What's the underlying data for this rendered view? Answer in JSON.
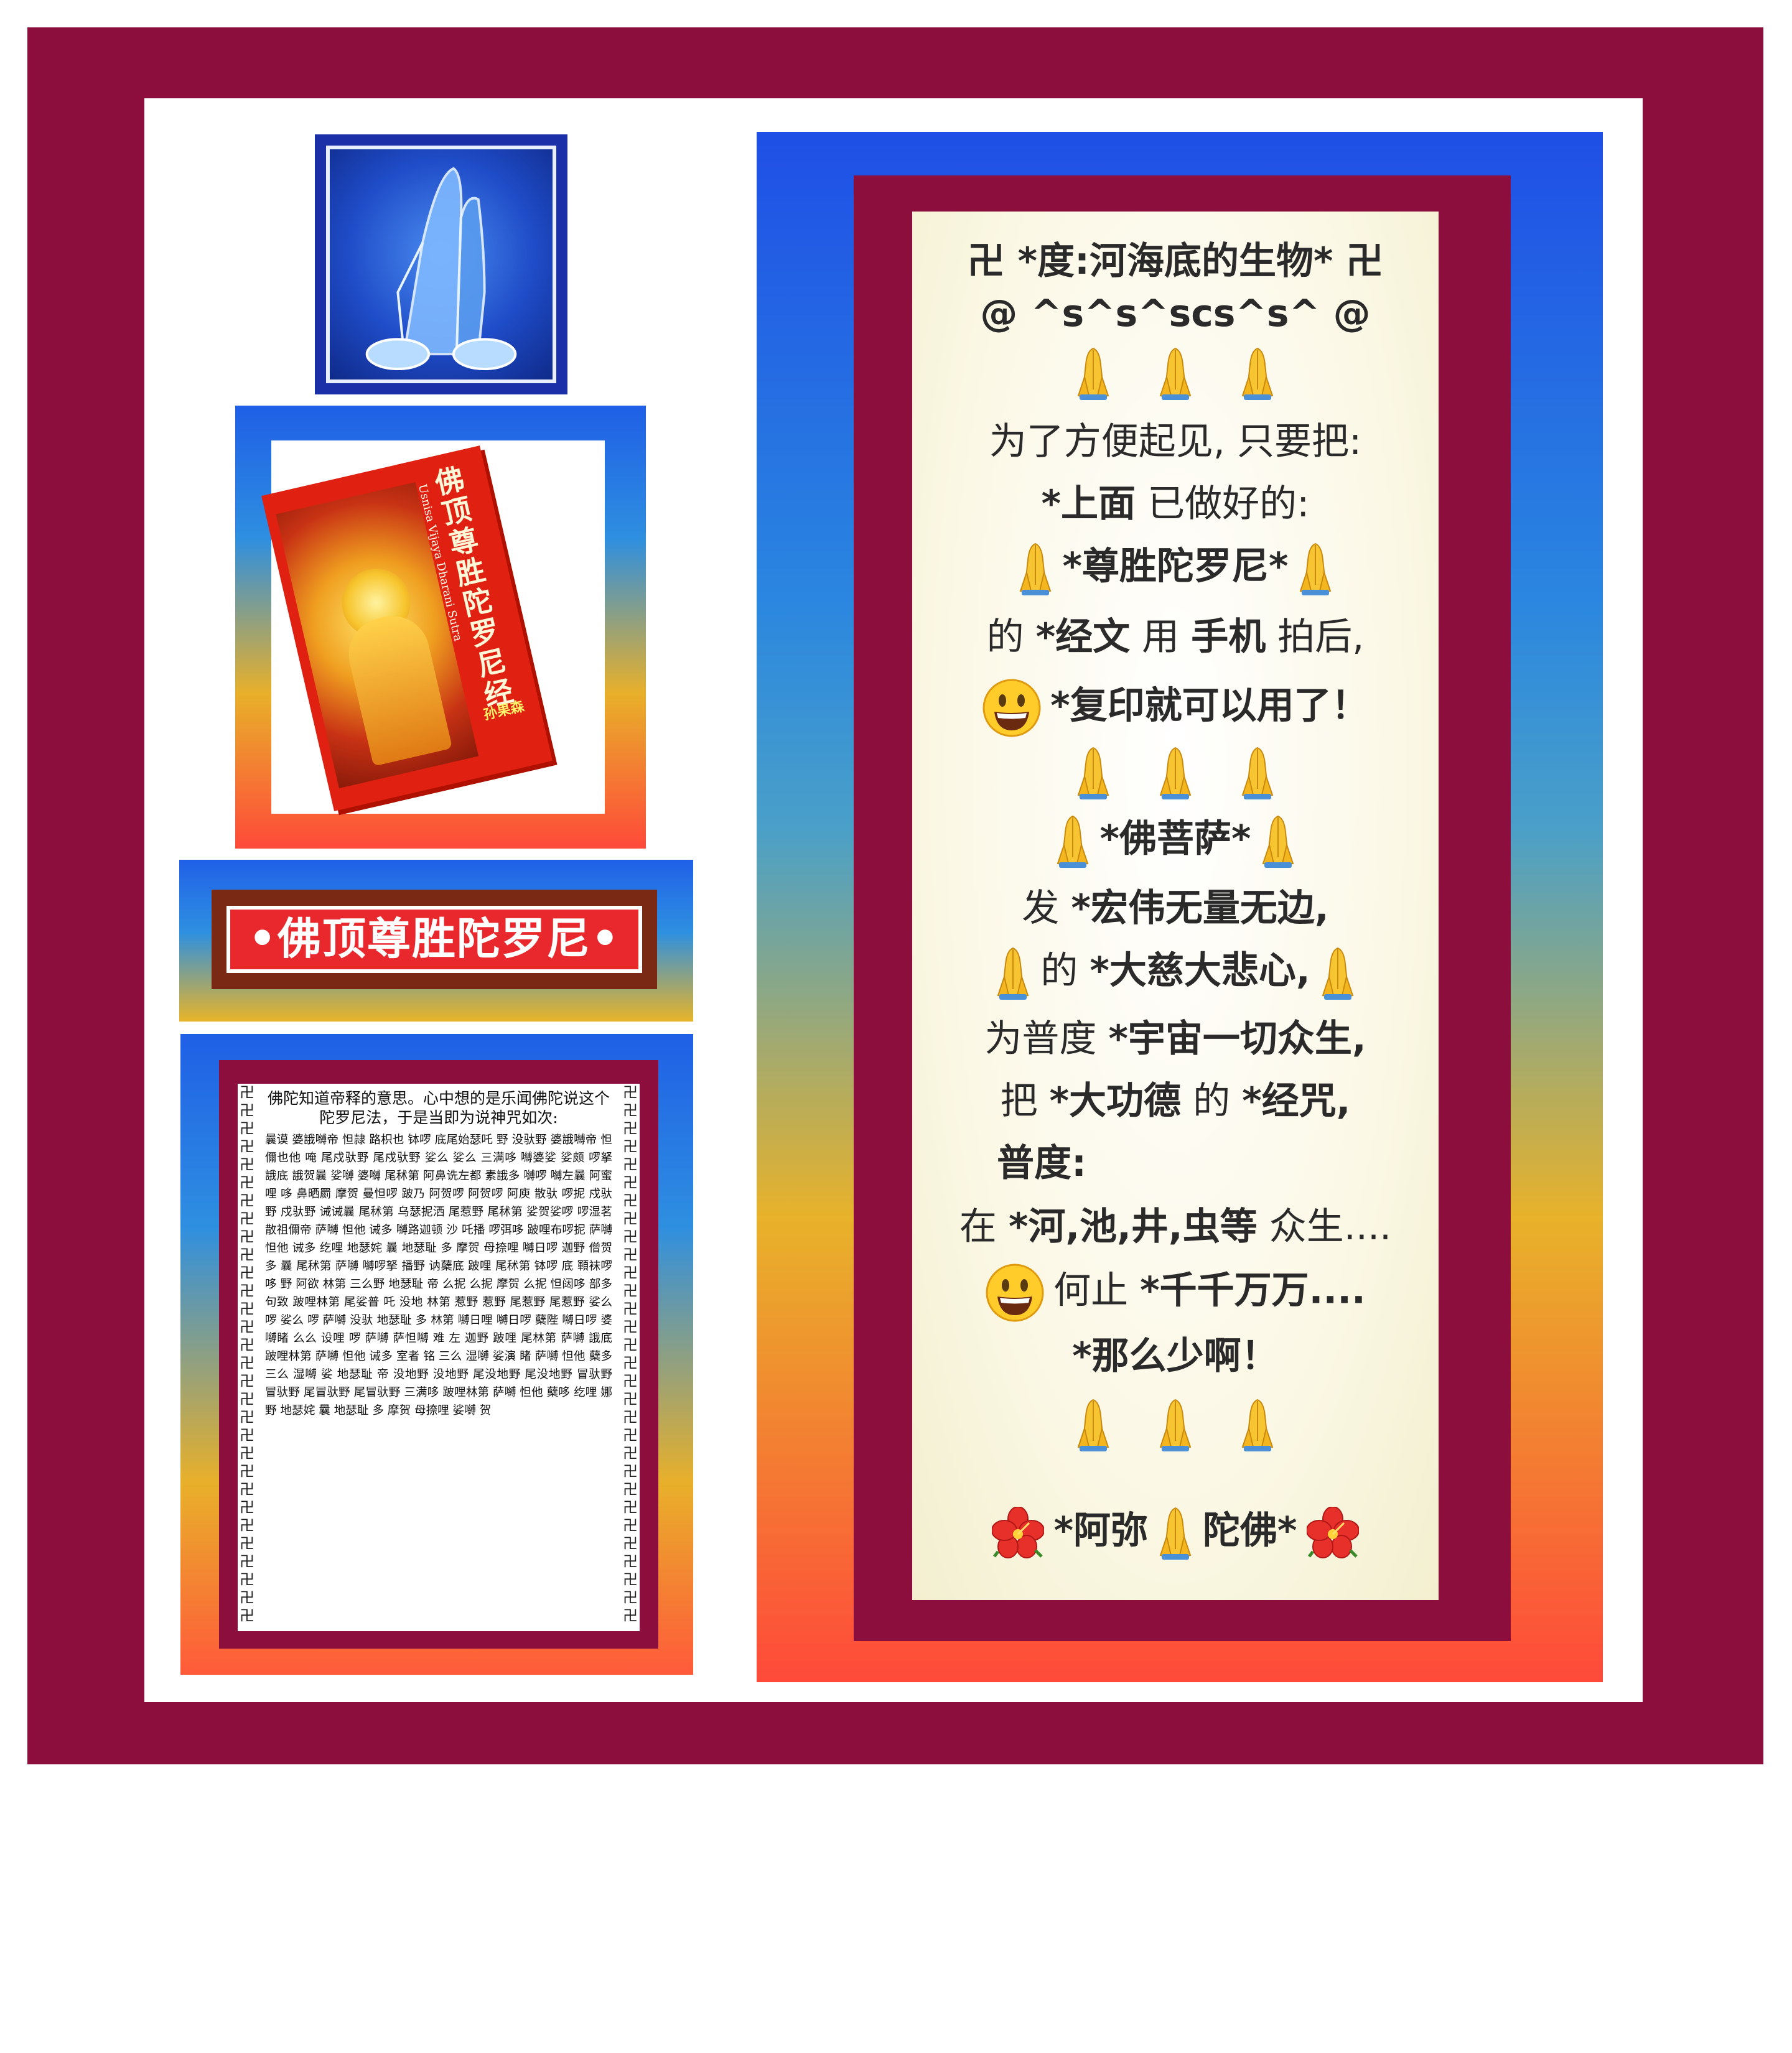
{
  "left": {
    "book": {
      "title_chars": [
        "佛",
        "顶",
        "尊",
        "胜",
        "陀",
        "罗",
        "尼",
        "经"
      ],
      "english_title": "Usnisa Vijaya Dharani Sutra",
      "author": "孙果森"
    },
    "banner_title": "•佛顶尊胜陀罗尼•",
    "sutra_page": {
      "border_glyphs": "卍卍卍卍卍卍卍卍卍卍卍卍卍卍卍卍卍卍卍卍卍卍卍卍卍卍卍卍卍卍",
      "intro": "佛陀知道帝释的意思。心中想的是乐闻佛陀说这个陀罗尼法，于是当即为说神咒如次:",
      "dharani": "曩谟 婆誐嚩帝 怛隷 路枳也 钵啰 底尾始瑟吒 野 没驮野 婆誐嚩帝 怛儞也他 唵 尾戍驮野 尾戍驮野 娑么 娑么 三满哆 嚩婆娑 娑颇 啰拏 誐底 誐贺曩 娑嚩 婆嚩 尾秫第 阿鼻诜左都 素誐多 嚩啰 嚩左曩 阿蜜哩 哆 鼻晒罽 摩贺 曼怛啰 跛乃 阿贺啰 阿贺啰 阿庾 散驮 啰抳 戍驮野 戍驮野 诫诫曩 尾秫第 乌瑟抳洒 尾惹野 尾秫第 娑贺娑啰 啰湿茗 散祖儞帝 萨嚩 怛他 诫多 嚩路迦顿 沙 吒播 啰弭哆 跛哩布啰抳 萨嚩 怛他 诫多 纥哩 地瑟姹 曩 地瑟耻 多 摩贺 母捺哩 嚩日啰 迦野 僧贺多 曩 尾秫第 萨嚩 嚩啰拏 播野 讷蘖底 跛哩 尾秫第 钵啰 底 顐袜啰哆 野 阿欲 林第 三么野 地瑟耻 帝 么抳 么抳 摩贺 么抳 怛闼哆 部多 句致 跛哩林第 尾娑普 吒 没地 林第 惹野 惹野 尾惹野 尾惹野 娑么 啰 娑么 啰 萨嚩 没驮 地瑟耻 多 林第 嚩日哩 嚩日啰 蘖陛 嚩日啰 婆嚩睹 么么 设哩 啰 萨嚩 萨怛嚩 难 左 迦野 跛哩 尾林第 萨嚩 誐底 跛哩林第 萨嚩 怛他 诫多 室者 铭 三么 湿嚩 娑演 睹 萨嚩 怛他 蘖多 三么 湿嚩 娑 地瑟耻 帝 没地野 没地野 尾没地野 尾没地野 冒驮野 冒驮野 尾冒驮野 尾冒驮野 三满哆 跛哩林第 萨嚩 怛他 蘖哆 纥哩 娜野 地瑟姹 曩 地瑟耻 多 摩贺 母捺哩 娑嚩 贺"
    }
  },
  "right": {
    "lines": {
      "l1": "卍 *度:河海底的生物* 卍",
      "l2": "@ ^s^s^scs^s^ @",
      "l3": "为了方便起见, 只要把:",
      "l4a": "*上面",
      "l4b": " 已做好的:",
      "l5": "*尊胜陀罗尼*",
      "l6a": "的 ",
      "l6b": "*经文",
      "l6c": " 用 ",
      "l6d": "手机",
      "l6e": " 拍后,",
      "l7": "*复印就可以用了！",
      "l8": "*佛菩萨*",
      "l9a": "发 ",
      "l9b": "*宏伟无量无边,",
      "l10a": "的 ",
      "l10b": "*大慈大悲心,",
      "l11a": "为普度 ",
      "l11b": "*宇宙一切众生,",
      "l12a": "把 ",
      "l12b": "*大功德",
      "l12c": " 的 ",
      "l12d": "*经咒,",
      "l13": "普度:",
      "l14a": "在 ",
      "l14b": "*河,池,井,虫等",
      "l14c": " 众生....",
      "l15a": "何止 ",
      "l15b": "*千千万万....",
      "l16": "*那么少啊！",
      "l17a": "*阿弥",
      "l17b": "陀佛*"
    },
    "emoji_icons": [
      "folded-hands",
      "grinning-face",
      "hibiscus"
    ]
  },
  "colors": {
    "frame": "#8c0e3c",
    "gradient_top": "#1f4fe6",
    "gradient_mid": "#e8b22a",
    "gradient_bottom": "#ff4a3a",
    "banner_red": "#e8282c"
  }
}
